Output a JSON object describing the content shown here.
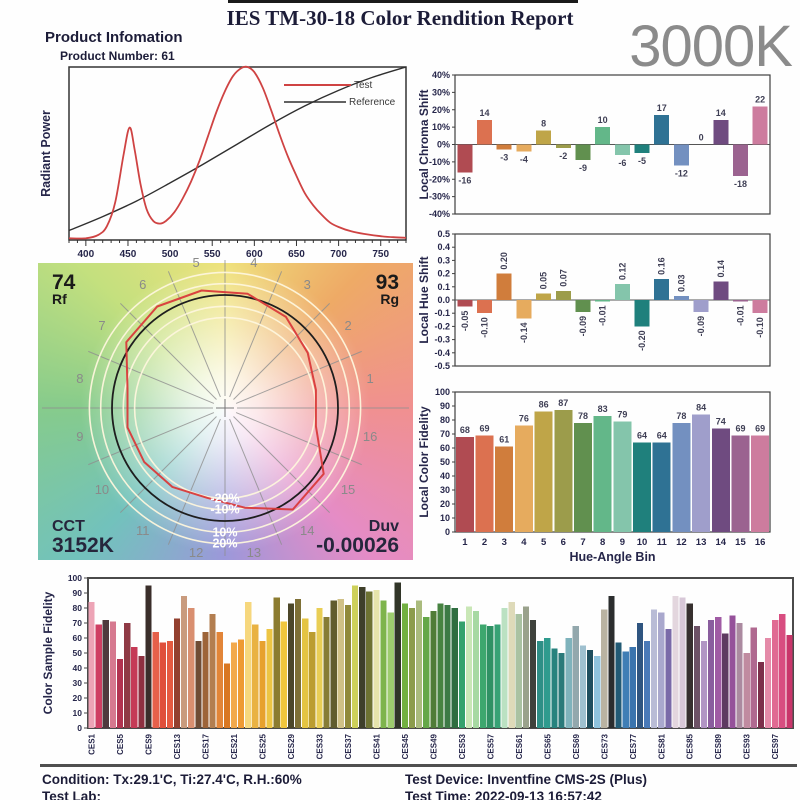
{
  "header": {
    "title": "IES TM-30-18 Color Rendition Report",
    "cct_badge": "3000K",
    "product_info_label": "Product Infomation",
    "product_number_label": "Product Number: 61"
  },
  "hue_bin_colors": [
    "#b04b52",
    "#dc7150",
    "#d07d3c",
    "#e6ab5e",
    "#bfa548",
    "#9c9c4b",
    "#61904f",
    "#63b789",
    "#84c5ab",
    "#1f807c",
    "#2f7294",
    "#7390c0",
    "#9f9ecb",
    "#6f4b80",
    "#9b6390",
    "#cd7c9e"
  ],
  "chart_data": [
    {
      "id": "spd",
      "type": "line",
      "ylabel": "Radiant Power",
      "xlim": [
        380,
        780
      ],
      "x_ticks": [
        380,
        430,
        480,
        530,
        580,
        630,
        680,
        730,
        780
      ],
      "grid": false,
      "legend_position": "top-right",
      "series": [
        {
          "name": "Test",
          "color": "#cf4343",
          "points": [
            [
              380,
              0.01
            ],
            [
              400,
              0.01
            ],
            [
              415,
              0.03
            ],
            [
              425,
              0.08
            ],
            [
              435,
              0.22
            ],
            [
              445,
              0.5
            ],
            [
              452,
              0.65
            ],
            [
              458,
              0.52
            ],
            [
              465,
              0.32
            ],
            [
              472,
              0.18
            ],
            [
              480,
              0.11
            ],
            [
              488,
              0.095
            ],
            [
              495,
              0.11
            ],
            [
              505,
              0.16
            ],
            [
              515,
              0.24
            ],
            [
              525,
              0.34
            ],
            [
              535,
              0.46
            ],
            [
              545,
              0.6
            ],
            [
              555,
              0.74
            ],
            [
              565,
              0.86
            ],
            [
              575,
              0.95
            ],
            [
              585,
              0.995
            ],
            [
              592,
              1.0
            ],
            [
              600,
              0.97
            ],
            [
              610,
              0.88
            ],
            [
              620,
              0.75
            ],
            [
              630,
              0.61
            ],
            [
              640,
              0.48
            ],
            [
              650,
              0.37
            ],
            [
              660,
              0.27
            ],
            [
              670,
              0.2
            ],
            [
              680,
              0.145
            ],
            [
              690,
              0.1
            ],
            [
              700,
              0.075
            ],
            [
              715,
              0.05
            ],
            [
              730,
              0.035
            ],
            [
              750,
              0.022
            ],
            [
              765,
              0.016
            ],
            [
              780,
              0.013
            ]
          ]
        },
        {
          "name": "Reference",
          "color": "#2f2f2f",
          "points": [
            [
              380,
              0.055
            ],
            [
              420,
              0.135
            ],
            [
              460,
              0.225
            ],
            [
              500,
              0.33
            ],
            [
              540,
              0.44
            ],
            [
              580,
              0.555
            ],
            [
              620,
              0.67
            ],
            [
              660,
              0.775
            ],
            [
              700,
              0.865
            ],
            [
              740,
              0.94
            ],
            [
              780,
              1.0
            ]
          ]
        }
      ]
    },
    {
      "id": "chroma_shift",
      "type": "bar",
      "ylabel": "Local Chroma Shift",
      "categories": [
        1,
        2,
        3,
        4,
        5,
        6,
        7,
        8,
        9,
        10,
        11,
        12,
        13,
        14,
        15,
        16
      ],
      "values": [
        -16,
        14,
        -3,
        -4,
        8,
        -2,
        -9,
        10,
        -6,
        -5,
        17,
        -12,
        0,
        14,
        -18,
        22
      ],
      "ylim": [
        -40,
        40
      ],
      "ytick_step": 10,
      "ytick_suffix": "%"
    },
    {
      "id": "hue_shift",
      "type": "bar",
      "ylabel": "Local Hue Shift",
      "categories": [
        1,
        2,
        3,
        4,
        5,
        6,
        7,
        8,
        9,
        10,
        11,
        12,
        13,
        14,
        15,
        16
      ],
      "values": [
        -0.05,
        -0.1,
        0.2,
        -0.14,
        0.05,
        0.07,
        -0.09,
        -0.01,
        0.12,
        -0.2,
        0.16,
        0.03,
        -0.09,
        0.14,
        -0.01,
        -0.1
      ],
      "ylim": [
        -0.5,
        0.5
      ],
      "ytick_step": 0.1
    },
    {
      "id": "color_fidelity",
      "type": "bar",
      "ylabel": "Local Color Fidelity",
      "xlabel": "Hue-Angle Bin",
      "categories": [
        1,
        2,
        3,
        4,
        5,
        6,
        7,
        8,
        9,
        10,
        11,
        12,
        13,
        14,
        15,
        16
      ],
      "values": [
        68,
        69,
        61,
        76,
        86,
        87,
        78,
        83,
        79,
        64,
        64,
        78,
        84,
        74,
        69,
        69
      ],
      "ylim": [
        0,
        100
      ],
      "ytick_step": 10
    },
    {
      "id": "ces_fidelity",
      "type": "bar",
      "ylabel": "Color Sample Fidelity",
      "ylim": [
        0,
        100
      ],
      "ytick_step": 10,
      "x_tick_labels": [
        "CES1",
        "CES5",
        "CES9",
        "CES13",
        "CES17",
        "CES21",
        "CES25",
        "CES29",
        "CES33",
        "CES37",
        "CES41",
        "CES45",
        "CES49",
        "CES53",
        "CES57",
        "CES61",
        "CES65",
        "CES69",
        "CES73",
        "CES77",
        "CES81",
        "CES85",
        "CES89",
        "CES93",
        "CES97"
      ],
      "x_tick_every": 4,
      "values": [
        84,
        69,
        72,
        71,
        46,
        70,
        54,
        48,
        95,
        64,
        57,
        58,
        73,
        88,
        80,
        58,
        64,
        76,
        64,
        43,
        57,
        59,
        84,
        69,
        58,
        66,
        87,
        71,
        83,
        86,
        73,
        64,
        80,
        74,
        85,
        86,
        82,
        95,
        94,
        91,
        92,
        85,
        77,
        97,
        83,
        80,
        85,
        74,
        78,
        83,
        82,
        80,
        71,
        81,
        78,
        69,
        68,
        69,
        80,
        84,
        76,
        81,
        72,
        58,
        60,
        53,
        50,
        60,
        68,
        55,
        52,
        48,
        79,
        88,
        57,
        51,
        54,
        70,
        58,
        79,
        77,
        66,
        88,
        87,
        83,
        68,
        58,
        72,
        74,
        63,
        75,
        70,
        50,
        67,
        44,
        60,
        72,
        76,
        62
      ],
      "colors": [
        "#eda4b6",
        "#cf3f63",
        "#4f3a3e",
        "#d6798f",
        "#b23350",
        "#8f3a45",
        "#c53a56",
        "#8e3040",
        "#3a2e2a",
        "#e6604a",
        "#e04f3b",
        "#e55a41",
        "#93402f",
        "#c99b7e",
        "#d98f70",
        "#6f4c35",
        "#9d6439",
        "#b37e50",
        "#e28538",
        "#d97722",
        "#f2a94c",
        "#ee9a33",
        "#f6d77d",
        "#e9b242",
        "#e7a12e",
        "#edc544",
        "#8c7c30",
        "#f0c63c",
        "#4c4729",
        "#7e7036",
        "#e4c443",
        "#bb9d30",
        "#e9ce55",
        "#877c35",
        "#605c2e",
        "#d0c187",
        "#918a3b",
        "#cdd05a",
        "#3e3f2a",
        "#6d7232",
        "#e6e4ab",
        "#7eb44c",
        "#9ecc6e",
        "#313528",
        "#72b041",
        "#8c9c4c",
        "#aabb7d",
        "#64a748",
        "#507c37",
        "#478341",
        "#3c7a45",
        "#2f6e40",
        "#34a16c",
        "#c9e7b6",
        "#a7d9a2",
        "#3da76e",
        "#2f9164",
        "#37a275",
        "#bbe1c2",
        "#dedab9",
        "#aac2a2",
        "#9aa28c",
        "#3f423c",
        "#2e8f86",
        "#2f9b8e",
        "#27837e",
        "#2a7a7a",
        "#7fb3bc",
        "#93a8ad",
        "#9fc0cf",
        "#1f4e5e",
        "#8fc3dd",
        "#b9b3a2",
        "#2b2d2e",
        "#225a74",
        "#3f7eb5",
        "#3a74ae",
        "#2f5580",
        "#4a7ab8",
        "#b9bcd6",
        "#a9a8cd",
        "#7a6aa8",
        "#e3d6de",
        "#d8c8d8",
        "#37302f",
        "#6d5266",
        "#b195c4",
        "#8a5d9e",
        "#a05ba4",
        "#5d3a60",
        "#95519a",
        "#ab8aa0",
        "#c08ba0",
        "#b06990",
        "#7c2e4a",
        "#e48aa8",
        "#e06a92",
        "#d84d80",
        "#c9356a"
      ]
    },
    {
      "id": "cvg",
      "type": "color_vector_graphic",
      "rf_value": "74",
      "rf_label": "Rf",
      "rg_value": "93",
      "rg_label": "Rg",
      "cct_label": "CCT",
      "cct_value": "3152K",
      "duv_label": "Duv",
      "duv_value": "-0.00026",
      "ring_labels": [
        "-20%",
        "-10%",
        "10%",
        "20%"
      ],
      "ring_ratios": [
        0.8,
        0.9,
        1.1,
        1.2
      ],
      "bin_labels": [
        1,
        2,
        3,
        4,
        5,
        6,
        7,
        8,
        9,
        10,
        11,
        12,
        13,
        14,
        15,
        16
      ],
      "test_polygon_radii": [
        0.82,
        0.88,
        0.97,
        1.03,
        1.06,
        1.08,
        1.05,
        0.88,
        0.88,
        0.86,
        0.84,
        0.81,
        0.9,
        1.08,
        1.05,
        0.82
      ],
      "test_color": "#d93a3a",
      "reference_color": "#1e1e1e"
    }
  ],
  "footer": {
    "condition": "Condition: Tx:29.1'C, Ti:27.4'C, R.H.:60%",
    "test_lab": "Test Lab:",
    "test_device": "Test Device: Inventfine CMS-2S (Plus)",
    "test_time": "Test Time: 2022-09-13 16:57:42"
  }
}
